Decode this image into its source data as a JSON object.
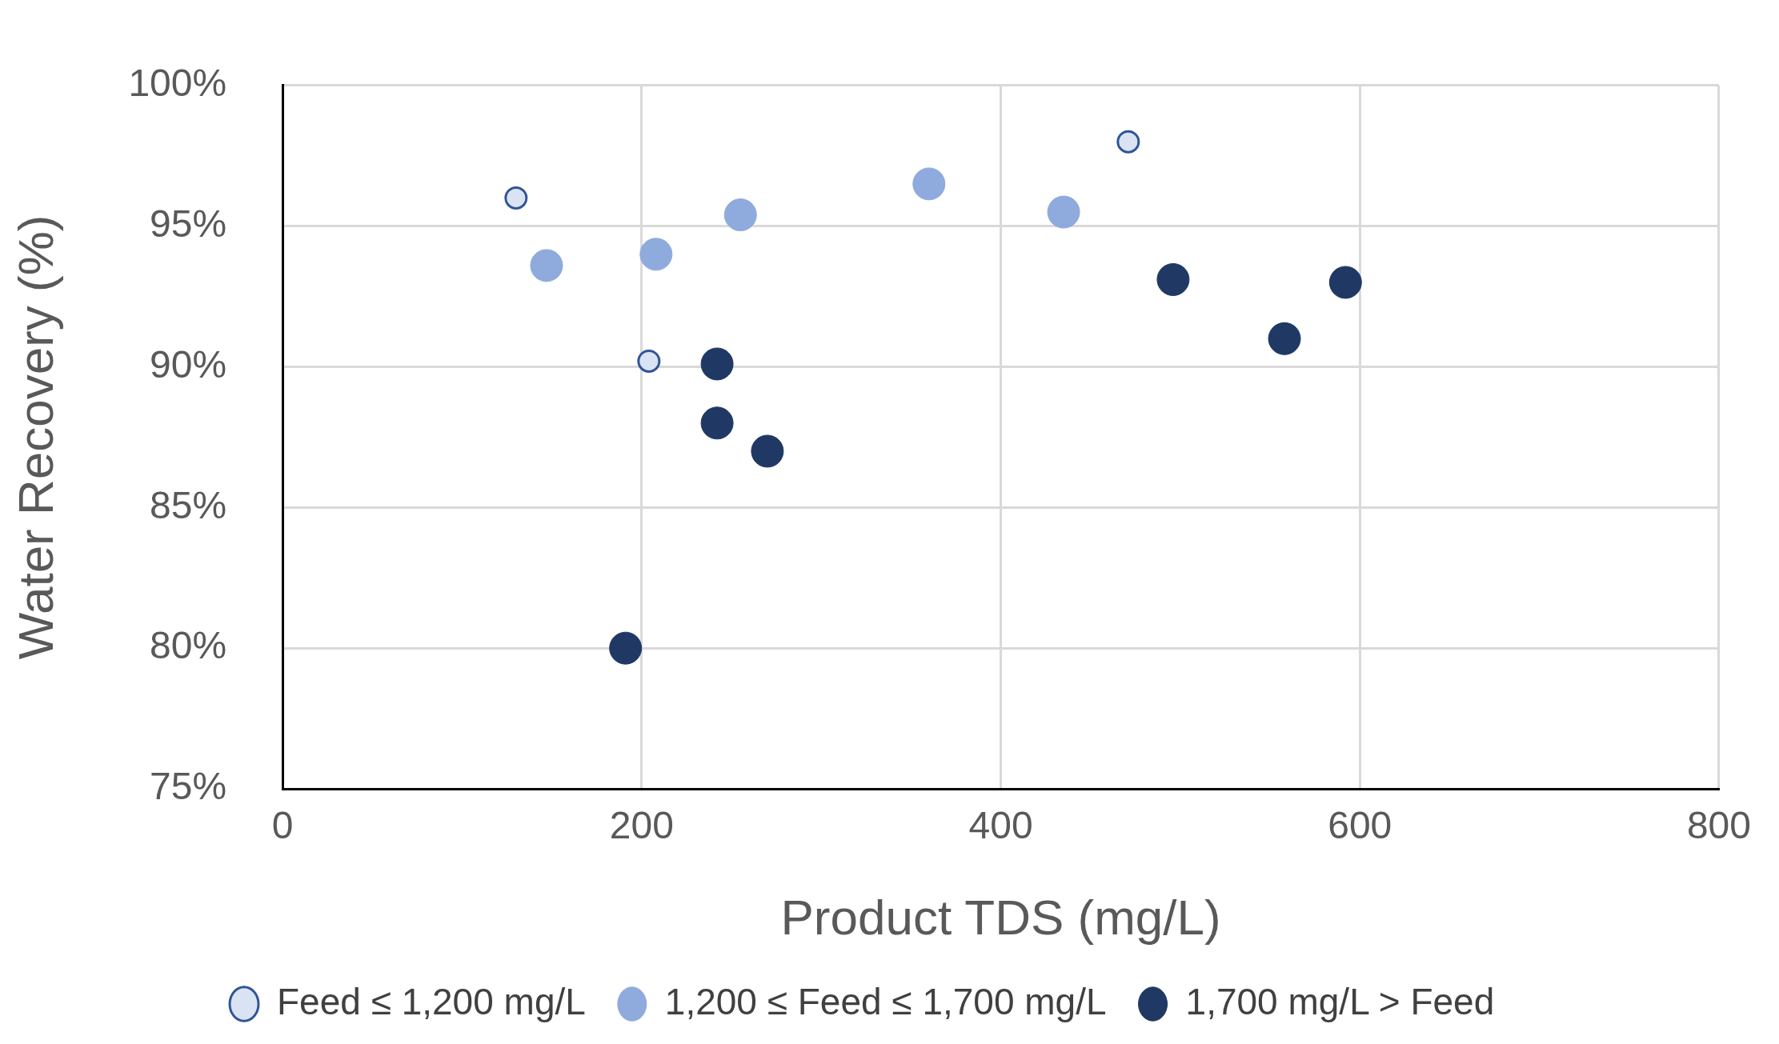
{
  "chart_data": {
    "type": "scatter",
    "xlabel": "Product TDS (mg/L)",
    "ylabel": "Water Recovery (%)",
    "xlim": [
      0,
      800
    ],
    "xticks": [
      0,
      200,
      400,
      600,
      800
    ],
    "ylim": [
      75,
      100
    ],
    "yticks": [
      {
        "value": 75,
        "label": "75%"
      },
      {
        "value": 80,
        "label": "80%"
      },
      {
        "value": 85,
        "label": "85%"
      },
      {
        "value": 90,
        "label": "90%"
      },
      {
        "value": 95,
        "label": "95%"
      },
      {
        "value": 100,
        "label": "100%"
      }
    ],
    "grid": true,
    "legend": "bottom",
    "marker": "circle",
    "series": [
      {
        "name": "Feed ≤ 1,200 mg/L",
        "color": "#dae3f3",
        "x": [
          130,
          471,
          204
        ],
        "values": [
          96.0,
          98.0,
          90.2
        ]
      },
      {
        "name": "1,200 ≤ Feed ≤ 1,700 mg/L",
        "color": "#8faadc",
        "x": [
          147,
          208,
          255,
          360,
          435
        ],
        "values": [
          93.6,
          94.0,
          95.4,
          96.5,
          95.5
        ]
      },
      {
        "name": "1,700 mg/L > Feed",
        "color": "#203864",
        "x": [
          191,
          242,
          242,
          270,
          496,
          558,
          592
        ],
        "values": [
          80.0,
          90.1,
          88.0,
          87.0,
          93.1,
          91.0,
          93.0
        ]
      }
    ]
  }
}
